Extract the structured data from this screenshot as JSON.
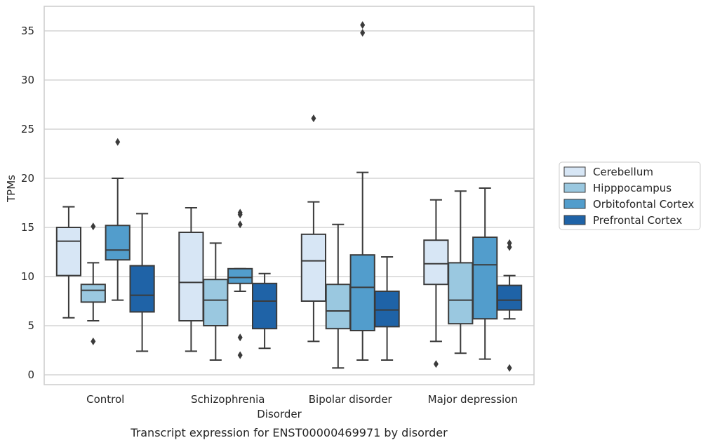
{
  "caption": "Transcript expression for ENST00000469971 by disorder",
  "chart_data": {
    "type": "box",
    "xlabel": "Disorder",
    "ylabel": "TPMs",
    "categories": [
      "Control",
      "Schizophrenia",
      "Bipolar disorder",
      "Major depression"
    ],
    "ylim": [
      -1,
      37.5
    ],
    "yticks": [
      0,
      5,
      10,
      15,
      20,
      25,
      30,
      35
    ],
    "grid": "horizontal",
    "legend_position": "right",
    "series": [
      {
        "name": "Cerebellum",
        "color": "#d7e6f5",
        "boxes": [
          {
            "whislo": 5.8,
            "q1": 10.1,
            "med": 13.6,
            "q3": 15.0,
            "whishi": 17.1,
            "fliers": []
          },
          {
            "whislo": 2.4,
            "q1": 5.5,
            "med": 9.4,
            "q3": 14.5,
            "whishi": 17.0,
            "fliers": []
          },
          {
            "whislo": 3.4,
            "q1": 7.5,
            "med": 11.6,
            "q3": 14.3,
            "whishi": 17.6,
            "fliers": [
              26.1
            ]
          },
          {
            "whislo": 3.4,
            "q1": 9.2,
            "med": 11.3,
            "q3": 13.7,
            "whishi": 17.8,
            "fliers": [
              1.1
            ]
          }
        ]
      },
      {
        "name": "Hipppocampus",
        "color": "#9ac8e0",
        "boxes": [
          {
            "whislo": 5.5,
            "q1": 7.4,
            "med": 8.6,
            "q3": 9.2,
            "whishi": 11.4,
            "fliers": [
              15.1,
              3.4
            ]
          },
          {
            "whislo": 1.5,
            "q1": 5.0,
            "med": 7.6,
            "q3": 9.7,
            "whishi": 13.4,
            "fliers": []
          },
          {
            "whislo": 0.7,
            "q1": 4.7,
            "med": 6.5,
            "q3": 9.2,
            "whishi": 15.3,
            "fliers": []
          },
          {
            "whislo": 2.2,
            "q1": 5.2,
            "med": 7.6,
            "q3": 11.4,
            "whishi": 18.7,
            "fliers": []
          }
        ]
      },
      {
        "name": "Orbitofontal Cortex",
        "color": "#529dcc",
        "boxes": [
          {
            "whislo": 7.6,
            "q1": 11.7,
            "med": 12.7,
            "q3": 15.2,
            "whishi": 20.0,
            "fliers": [
              23.7
            ]
          },
          {
            "whislo": 8.5,
            "q1": 9.3,
            "med": 9.9,
            "q3": 10.8,
            "whishi": 10.8,
            "fliers": [
              16.5,
              16.3,
              15.3,
              3.8,
              2.0
            ]
          },
          {
            "whislo": 1.5,
            "q1": 4.5,
            "med": 8.9,
            "q3": 12.2,
            "whishi": 20.6,
            "fliers": [
              35.6,
              34.8
            ]
          },
          {
            "whislo": 1.6,
            "q1": 5.7,
            "med": 11.2,
            "q3": 14.0,
            "whishi": 19.0,
            "fliers": []
          }
        ]
      },
      {
        "name": "Prefrontal Cortex",
        "color": "#1f63a7",
        "boxes": [
          {
            "whislo": 2.4,
            "q1": 6.4,
            "med": 8.1,
            "q3": 11.1,
            "whishi": 16.4,
            "fliers": []
          },
          {
            "whislo": 2.7,
            "q1": 4.7,
            "med": 7.5,
            "q3": 9.3,
            "whishi": 10.3,
            "fliers": []
          },
          {
            "whislo": 1.5,
            "q1": 4.9,
            "med": 6.6,
            "q3": 8.5,
            "whishi": 12.0,
            "fliers": []
          },
          {
            "whislo": 5.7,
            "q1": 6.6,
            "med": 7.6,
            "q3": 9.1,
            "whishi": 10.1,
            "fliers": [
              13.4,
              13.0,
              0.7
            ]
          }
        ]
      }
    ]
  }
}
